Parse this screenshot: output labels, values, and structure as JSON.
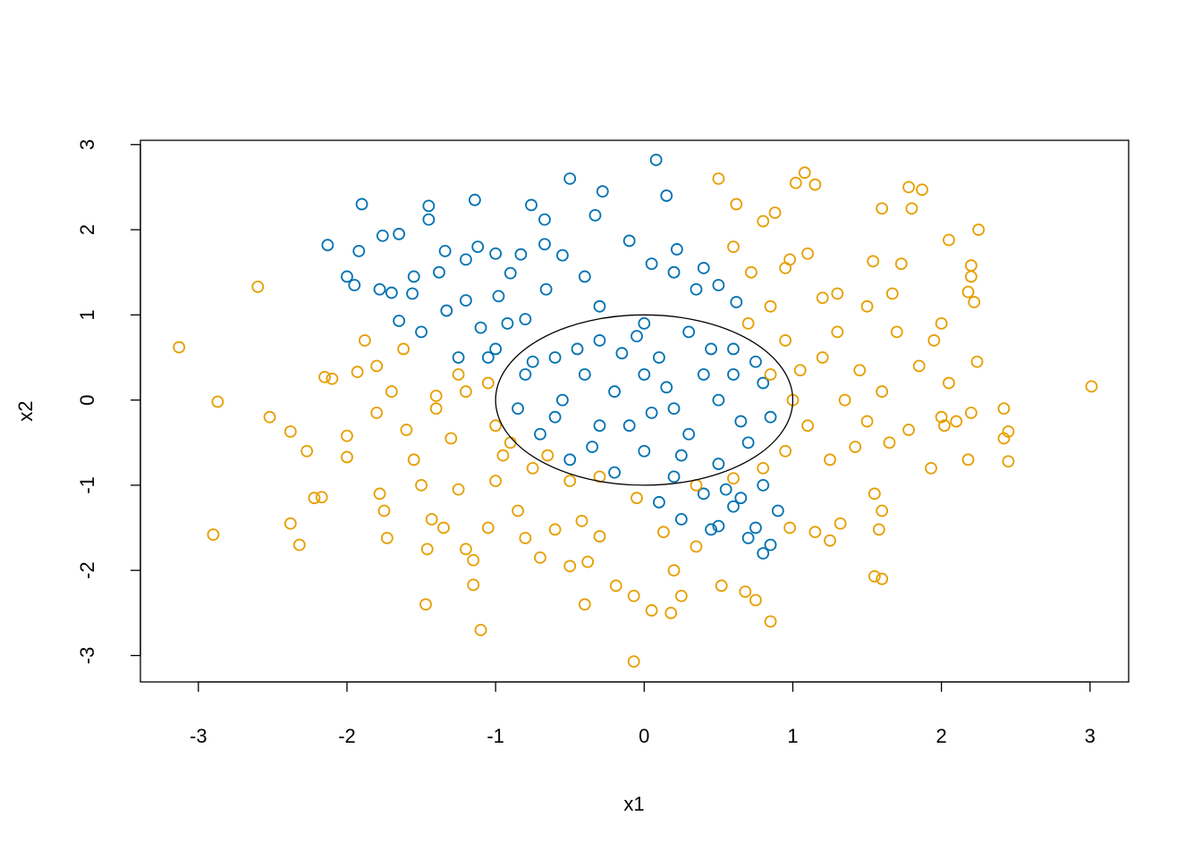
{
  "chart_data": {
    "type": "scatter",
    "xlabel": "x1",
    "ylabel": "x2",
    "xlim": [
      -3.39,
      3.26
    ],
    "ylim": [
      -3.31,
      3.05
    ],
    "xticks": [
      -3,
      -2,
      -1,
      0,
      1,
      2,
      3
    ],
    "yticks": [
      -3,
      -2,
      -1,
      0,
      1,
      2,
      3
    ],
    "circle": {
      "center": [
        0,
        0
      ],
      "radius": 1
    },
    "series": [
      {
        "color": "#0072B2",
        "x": [
          0.08,
          -0.5,
          -0.28,
          0.15,
          -1.14,
          -1.9,
          -1.45,
          -0.76,
          -0.33,
          -1.45,
          -0.67,
          -1.65,
          -1.76,
          -2.13,
          -1.92,
          -1.34,
          -1.12,
          -0.67,
          -0.1,
          0.22,
          -1.2,
          -1.0,
          -0.83,
          -0.55,
          0.05,
          0.4,
          -2.0,
          -1.95,
          -1.55,
          -1.38,
          -0.9,
          -0.4,
          0.2,
          -1.78,
          -1.7,
          -1.56,
          -1.2,
          -0.98,
          -0.66,
          -1.65,
          -1.33,
          -1.1,
          -0.92,
          -1.5,
          -1.25,
          -1.05,
          -1.0,
          0.5,
          0.35,
          0.62,
          -0.3,
          -0.8,
          0.5,
          0.25,
          0.6,
          0.75,
          0.8,
          0.85,
          0.7,
          0.9,
          0.55,
          0.4,
          0.8,
          0.1,
          0.45,
          0.65,
          0.0,
          -0.3,
          0.3,
          -0.6,
          0.6,
          -0.8,
          0.8,
          -0.85,
          0.85,
          -0.7,
          0.7,
          -0.5,
          0.5,
          -0.2,
          0.2,
          0.0,
          -0.4,
          0.4,
          -0.2,
          0.2,
          0.0,
          0.1,
          -0.1,
          0.3,
          -0.3,
          0.5,
          -0.55,
          0.6,
          -0.6,
          0.15,
          -0.45,
          0.45,
          -0.15,
          0.25,
          -0.35,
          0.65,
          -0.75,
          0.75,
          0.05,
          -0.05
        ],
        "values": [
          2.82,
          2.6,
          2.45,
          2.4,
          2.35,
          2.3,
          2.28,
          2.29,
          2.17,
          2.12,
          2.12,
          1.95,
          1.93,
          1.82,
          1.75,
          1.75,
          1.8,
          1.83,
          1.87,
          1.77,
          1.65,
          1.72,
          1.71,
          1.7,
          1.6,
          1.55,
          1.45,
          1.35,
          1.45,
          1.5,
          1.49,
          1.45,
          1.5,
          1.3,
          1.26,
          1.25,
          1.17,
          1.22,
          1.3,
          0.93,
          1.05,
          0.85,
          0.9,
          0.8,
          0.5,
          0.5,
          0.6,
          1.35,
          1.3,
          1.15,
          1.1,
          0.95,
          -1.48,
          -1.4,
          -1.25,
          -1.5,
          -1.8,
          -1.7,
          -1.62,
          -1.3,
          -1.05,
          -1.1,
          -1.0,
          -1.2,
          -1.52,
          -1.15,
          0.9,
          0.7,
          0.8,
          0.5,
          0.6,
          0.3,
          0.2,
          -0.1,
          -0.2,
          -0.4,
          -0.5,
          -0.7,
          -0.75,
          -0.85,
          -0.9,
          -0.6,
          0.3,
          0.3,
          0.1,
          -0.1,
          0.3,
          0.5,
          -0.3,
          -0.4,
          -0.3,
          0.0,
          0.0,
          0.3,
          -0.2,
          0.15,
          0.6,
          0.6,
          0.55,
          -0.65,
          -0.55,
          -0.25,
          0.45,
          0.45,
          -0.15,
          0.75
        ]
      },
      {
        "color": "#E69F00",
        "x": [
          -3.13,
          -2.87,
          -2.9,
          -2.6,
          -2.52,
          -2.38,
          -2.38,
          -2.32,
          -2.27,
          -2.22,
          -2.17,
          -2.15,
          -2.1,
          -2.0,
          -2.0,
          -1.93,
          -1.88,
          -1.8,
          -1.78,
          -1.75,
          -1.73,
          -1.7,
          -1.62,
          -1.6,
          -1.55,
          -1.5,
          -1.47,
          -1.46,
          -1.43,
          -1.35,
          -1.3,
          -1.25,
          -1.2,
          -1.15,
          -1.1,
          -1.15,
          -1.05,
          -1.0,
          -0.95,
          -0.85,
          -0.8,
          -0.7,
          -0.6,
          -0.5,
          -0.42,
          -0.38,
          -0.4,
          -0.3,
          -0.19,
          -0.07,
          -0.07,
          0.05,
          0.2,
          0.18,
          0.25,
          0.13,
          0.35,
          -0.05,
          0.52,
          0.68,
          0.75,
          0.85,
          0.98,
          1.15,
          1.25,
          1.32,
          1.55,
          1.6,
          1.58,
          1.6,
          1.55,
          1.25,
          1.42,
          1.5,
          1.65,
          1.78,
          1.85,
          1.93,
          1.95,
          2.0,
          2.02,
          2.05,
          2.0,
          2.1,
          2.18,
          2.2,
          2.22,
          2.2,
          2.18,
          2.2,
          2.25,
          2.24,
          2.42,
          2.42,
          2.45,
          2.45,
          3.01,
          2.05,
          1.87,
          1.78,
          1.8,
          1.6,
          1.73,
          1.54,
          1.67,
          1.5,
          1.3,
          1.2,
          1.1,
          1.08,
          1.02,
          1.15,
          0.88,
          0.8,
          0.62,
          0.5,
          0.6,
          0.72,
          0.95,
          0.98,
          0.85,
          0.7,
          0.95,
          0.85,
          1.0,
          1.1,
          0.95,
          0.8,
          0.6,
          0.35,
          -0.5,
          -0.75,
          -0.9,
          -1.0,
          -1.2,
          -1.4,
          -1.8,
          -1.4,
          -1.25,
          -1.05,
          -0.65,
          -0.3,
          1.2,
          1.35,
          1.6,
          1.7,
          1.3,
          1.45,
          1.05
        ],
        "values": [
          0.62,
          -0.02,
          -1.58,
          1.33,
          -0.2,
          -0.37,
          -1.45,
          -1.7,
          -0.6,
          -1.15,
          -1.14,
          0.27,
          0.25,
          -0.42,
          -0.67,
          0.33,
          0.7,
          0.4,
          -1.1,
          -1.3,
          -1.62,
          0.1,
          0.6,
          -0.35,
          -0.7,
          -1.0,
          -2.4,
          -1.75,
          -1.4,
          -1.5,
          -0.45,
          -1.05,
          -1.75,
          -1.88,
          -2.7,
          -2.17,
          -1.5,
          -0.95,
          -0.65,
          -1.3,
          -1.62,
          -1.85,
          -1.52,
          -1.95,
          -1.42,
          -1.9,
          -2.4,
          -1.6,
          -2.18,
          -2.3,
          -3.07,
          -2.47,
          -2.0,
          -2.5,
          -2.3,
          -1.55,
          -1.72,
          -1.15,
          -2.18,
          -2.25,
          -2.35,
          -2.6,
          -1.5,
          -1.55,
          -1.65,
          -1.45,
          -2.07,
          -2.1,
          -1.52,
          -1.3,
          -1.1,
          -0.7,
          -0.55,
          -0.25,
          -0.5,
          -0.35,
          0.4,
          -0.8,
          0.7,
          0.9,
          -0.3,
          0.2,
          -0.2,
          -0.25,
          -0.7,
          -0.15,
          1.15,
          1.45,
          1.27,
          1.58,
          2.0,
          0.45,
          -0.1,
          -0.45,
          -0.72,
          -0.37,
          0.16,
          1.88,
          2.47,
          2.5,
          2.25,
          2.25,
          1.6,
          1.63,
          1.25,
          1.1,
          1.25,
          1.2,
          1.72,
          2.67,
          2.55,
          2.53,
          2.2,
          2.1,
          2.3,
          2.6,
          1.8,
          1.5,
          1.55,
          1.65,
          1.1,
          0.9,
          0.7,
          0.3,
          0.0,
          -0.3,
          -0.6,
          -0.8,
          -0.92,
          -1.0,
          -0.95,
          -0.8,
          -0.5,
          -0.3,
          0.1,
          0.05,
          -0.15,
          -0.1,
          0.3,
          0.2,
          -0.65,
          -0.9,
          0.5,
          0.0,
          0.1,
          0.8,
          0.8,
          0.35,
          0.35
        ]
      }
    ]
  }
}
